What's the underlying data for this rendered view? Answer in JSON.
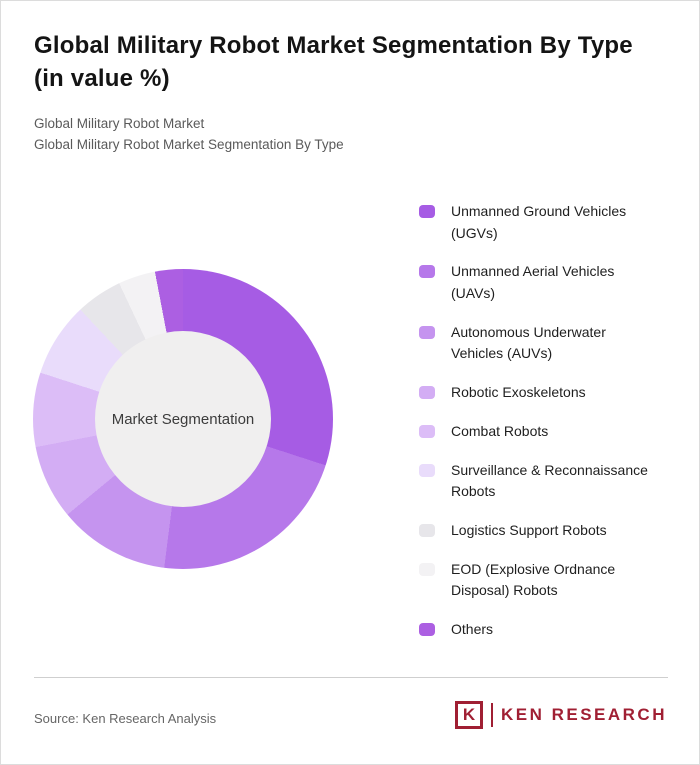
{
  "title": "Global Military Robot Market Segmentation By Type (in value %)",
  "subtitles": {
    "line1": "Global Military Robot Market",
    "line2": "Global Military Robot Market Segmentation By Type"
  },
  "chart_data": {
    "type": "pie",
    "variant": "donut",
    "title": "Global Military Robot Market Segmentation By Type (in value %)",
    "center_label": "Market Segmentation",
    "legend_position": "right",
    "units": "value %",
    "categories": [
      "Unmanned Ground Vehicles (UGVs)",
      "Unmanned Aerial Vehicles (UAVs)",
      "Autonomous Underwater Vehicles (AUVs)",
      "Robotic Exoskeletons",
      "Combat Robots",
      "Surveillance & Reconnaissance Robots",
      "Logistics Support Robots",
      "EOD (Explosive Ordnance Disposal) Robots",
      "Others"
    ],
    "values": [
      30,
      22,
      12,
      8,
      8,
      8,
      5,
      4,
      3
    ],
    "colors": [
      "#a65ce4",
      "#b678ea",
      "#c594ef",
      "#d3adf4",
      "#dcbdf7",
      "#e9dcfb",
      "#e7e6ea",
      "#f3f2f4",
      "#ac5fe2"
    ],
    "hole_color": "#f0efef"
  },
  "footer": {
    "source": "Source: Ken Research Analysis",
    "logo": {
      "letter": "K",
      "brand": "KEN RESEARCH",
      "color": "#a01f33"
    }
  }
}
